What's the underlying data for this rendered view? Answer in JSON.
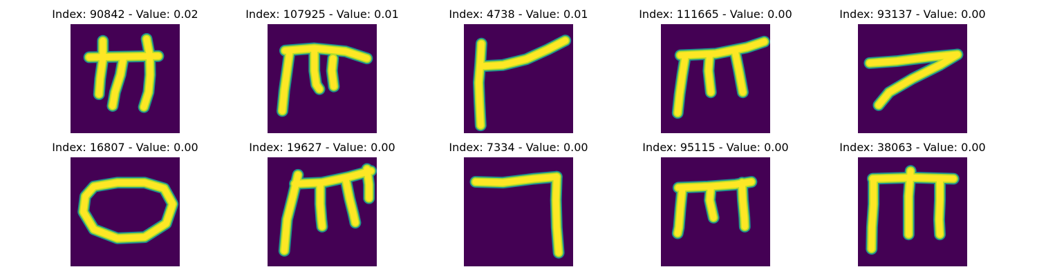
{
  "colors": {
    "background": "#440154",
    "stroke_core": "#fde725",
    "stroke_mid": "#b5de2b",
    "stroke_edge": "#21918c"
  },
  "panels": [
    {
      "title": "Index: 90842 - Value: 0.02",
      "glyph": "m-shape",
      "strokes": [
        [
          [
            4.8,
            8.5
          ],
          [
            22.5,
            8.2
          ]
        ],
        [
          [
            8.3,
            4.3
          ],
          [
            8.3,
            9.0
          ],
          [
            7.6,
            14.0
          ],
          [
            7.3,
            18.0
          ]
        ],
        [
          [
            13.5,
            9.0
          ],
          [
            12.8,
            13.0
          ],
          [
            11.4,
            17.5
          ],
          [
            10.8,
            21.0
          ]
        ],
        [
          [
            19.5,
            3.8
          ],
          [
            20.3,
            8.0
          ],
          [
            20.4,
            13.0
          ],
          [
            20.0,
            17.5
          ],
          [
            18.8,
            21.3
          ]
        ]
      ]
    },
    {
      "title": "Index: 107925 - Value: 0.01",
      "glyph": "pi-shape",
      "strokes": [
        [
          [
            4.5,
            6.8
          ],
          [
            12.0,
            6.2
          ],
          [
            20.0,
            7.0
          ],
          [
            25.5,
            8.8
          ]
        ],
        [
          [
            5.7,
            6.8
          ],
          [
            5.0,
            12.0
          ],
          [
            4.3,
            17.0
          ],
          [
            3.8,
            22.3
          ]
        ],
        [
          [
            12.0,
            7.0
          ],
          [
            12.0,
            12.0
          ],
          [
            12.5,
            15.5
          ],
          [
            13.3,
            16.7
          ]
        ],
        [
          [
            16.8,
            8.8
          ],
          [
            16.5,
            12.0
          ],
          [
            17.0,
            16.0
          ]
        ]
      ]
    },
    {
      "title": "Index: 4738 - Value: 0.01",
      "glyph": "flag-shape",
      "strokes": [
        [
          [
            4.5,
            5.0
          ],
          [
            4.2,
            10.0
          ],
          [
            3.8,
            15.0
          ],
          [
            4.0,
            20.0
          ],
          [
            4.3,
            26.0
          ]
        ],
        [
          [
            4.5,
            10.8
          ],
          [
            10.0,
            10.5
          ],
          [
            16.0,
            9.0
          ],
          [
            21.5,
            6.5
          ],
          [
            26.0,
            4.2
          ]
        ]
      ]
    },
    {
      "title": "Index: 111665 - Value: 0.00",
      "glyph": "m-shape",
      "strokes": [
        [
          [
            5.0,
            8.0
          ],
          [
            14.0,
            7.6
          ],
          [
            22.0,
            6.0
          ],
          [
            26.5,
            4.5
          ]
        ],
        [
          [
            6.3,
            8.0
          ],
          [
            5.5,
            13.0
          ],
          [
            4.8,
            18.0
          ],
          [
            4.3,
            22.8
          ]
        ],
        [
          [
            12.5,
            7.8
          ],
          [
            12.2,
            12.0
          ],
          [
            12.8,
            17.5
          ]
        ],
        [
          [
            19.0,
            7.0
          ],
          [
            20.0,
            12.0
          ],
          [
            21.0,
            17.5
          ]
        ]
      ]
    },
    {
      "title": "Index: 93137 - Value: 0.00",
      "glyph": "seven-shape",
      "strokes": [
        [
          [
            3.0,
            10.0
          ],
          [
            10.0,
            9.5
          ],
          [
            18.0,
            8.5
          ],
          [
            25.5,
            7.8
          ]
        ],
        [
          [
            25.5,
            7.8
          ],
          [
            21.0,
            10.5
          ],
          [
            14.0,
            14.0
          ],
          [
            8.0,
            17.5
          ],
          [
            5.3,
            20.8
          ]
        ]
      ]
    },
    {
      "title": "Index: 16807 - Value: 0.00",
      "glyph": "loop-shape",
      "strokes": [
        [
          [
            6.0,
            7.5
          ],
          [
            12.0,
            6.5
          ],
          [
            19.0,
            6.5
          ],
          [
            24.0,
            8.0
          ],
          [
            26.2,
            12.0
          ],
          [
            24.5,
            17.0
          ],
          [
            19.0,
            20.5
          ],
          [
            12.0,
            20.8
          ],
          [
            6.0,
            18.5
          ],
          [
            3.3,
            14.0
          ],
          [
            3.8,
            10.0
          ],
          [
            6.0,
            7.5
          ]
        ]
      ]
    },
    {
      "title": "Index: 19627 - Value: 0.00",
      "glyph": "m-shape",
      "strokes": [
        [
          [
            7.0,
            6.8
          ],
          [
            14.0,
            6.5
          ],
          [
            21.0,
            5.0
          ],
          [
            26.5,
            3.5
          ]
        ],
        [
          [
            7.8,
            4.5
          ],
          [
            6.5,
            10.0
          ],
          [
            5.0,
            16.0
          ],
          [
            4.3,
            24.0
          ]
        ],
        [
          [
            13.5,
            6.8
          ],
          [
            13.5,
            12.0
          ],
          [
            13.8,
            16.0
          ],
          [
            14.0,
            17.8
          ]
        ],
        [
          [
            20.0,
            5.5
          ],
          [
            21.0,
            10.5
          ],
          [
            22.0,
            14.5
          ],
          [
            22.5,
            16.8
          ]
        ],
        [
          [
            25.5,
            3.0
          ],
          [
            26.0,
            7.0
          ],
          [
            26.0,
            10.5
          ]
        ]
      ]
    },
    {
      "title": "Index: 7334 - Value: 0.00",
      "glyph": "gamma-shape",
      "strokes": [
        [
          [
            3.0,
            6.3
          ],
          [
            10.0,
            6.5
          ],
          [
            18.0,
            5.5
          ],
          [
            23.8,
            5.0
          ]
        ],
        [
          [
            23.8,
            5.0
          ],
          [
            23.6,
            11.0
          ],
          [
            23.8,
            18.0
          ],
          [
            24.3,
            24.5
          ]
        ]
      ]
    },
    {
      "title": "Index: 95115 - Value: 0.00",
      "glyph": "m-shape",
      "strokes": [
        [
          [
            4.5,
            7.8
          ],
          [
            12.0,
            7.5
          ],
          [
            19.0,
            7.0
          ],
          [
            23.2,
            6.3
          ]
        ],
        [
          [
            5.5,
            8.0
          ],
          [
            5.0,
            13.0
          ],
          [
            4.6,
            18.0
          ],
          [
            4.3,
            19.5
          ]
        ],
        [
          [
            12.8,
            7.8
          ],
          [
            12.5,
            11.0
          ],
          [
            13.5,
            15.5
          ]
        ],
        [
          [
            20.8,
            6.5
          ],
          [
            21.0,
            11.0
          ],
          [
            21.4,
            15.5
          ],
          [
            21.5,
            17.8
          ]
        ]
      ]
    },
    {
      "title": "Index: 38063 - Value: 0.00",
      "glyph": "m-shape",
      "strokes": [
        [
          [
            3.8,
            5.5
          ],
          [
            14.0,
            5.2
          ],
          [
            24.5,
            5.5
          ]
        ],
        [
          [
            4.0,
            5.5
          ],
          [
            4.0,
            12.0
          ],
          [
            3.6,
            18.0
          ],
          [
            3.5,
            23.5
          ]
        ],
        [
          [
            13.5,
            3.5
          ],
          [
            13.0,
            10.0
          ],
          [
            13.0,
            15.0
          ],
          [
            13.0,
            19.8
          ]
        ],
        [
          [
            21.0,
            5.5
          ],
          [
            21.0,
            11.0
          ],
          [
            20.8,
            16.0
          ],
          [
            21.0,
            19.8
          ]
        ]
      ]
    }
  ]
}
